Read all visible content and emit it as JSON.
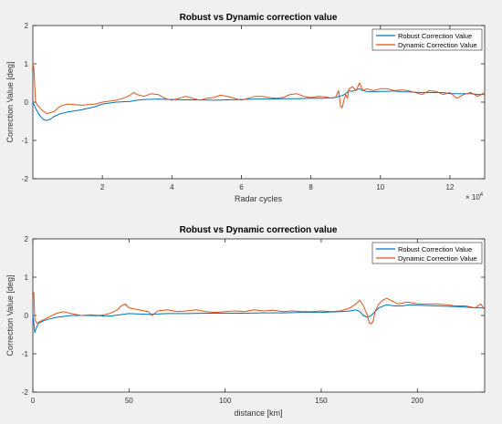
{
  "colors": {
    "robust": "#0072bd",
    "dynamic": "#d95319",
    "axes_bg": "#ffffff",
    "figure_bg": "#f0f0f0",
    "axis": "#262626"
  },
  "chart_data": [
    {
      "type": "line",
      "title": "Robust vs Dynamic correction value",
      "xlabel": "Radar cycles",
      "ylabel": "Correction Value [deg]",
      "x_exponent_label": "× 10",
      "x_exponent_power": "4",
      "x_scale_factor": 10000,
      "xlim": [
        0,
        130000
      ],
      "ylim": [
        -2,
        2
      ],
      "xticks": [
        20000,
        40000,
        60000,
        80000,
        100000,
        120000
      ],
      "xtick_labels": [
        "2",
        "4",
        "6",
        "8",
        "10",
        "12"
      ],
      "yticks": [
        -2,
        -1,
        0,
        1,
        2
      ],
      "ytick_labels": [
        "-2",
        "-1",
        "0",
        "1",
        "2"
      ],
      "grid": false,
      "legend_position": "top-right",
      "series": [
        {
          "name": "Robust Correction Value",
          "color": "#0072bd",
          "x": [
            0,
            500,
            1000,
            2000,
            3000,
            4000,
            5000,
            6000,
            8000,
            10000,
            14000,
            18000,
            20000,
            24000,
            28000,
            30000,
            32000,
            36000,
            40000,
            44000,
            48000,
            52000,
            56000,
            60000,
            64000,
            68000,
            72000,
            76000,
            80000,
            84000,
            87000,
            88000,
            89000,
            90000,
            91000,
            92000,
            93000,
            94000,
            95000,
            96000,
            98000,
            100000,
            102000,
            104000,
            106000,
            108000,
            110000,
            112000,
            114000,
            116000,
            118000,
            120000,
            122000,
            124000,
            126000,
            128000,
            130000
          ],
          "values": [
            0.0,
            -0.1,
            -0.2,
            -0.35,
            -0.45,
            -0.48,
            -0.45,
            -0.38,
            -0.3,
            -0.26,
            -0.2,
            -0.12,
            -0.05,
            0.0,
            0.02,
            0.05,
            0.07,
            0.08,
            0.07,
            0.06,
            0.06,
            0.05,
            0.06,
            0.07,
            0.08,
            0.08,
            0.09,
            0.09,
            0.1,
            0.1,
            0.12,
            0.15,
            0.17,
            0.22,
            0.3,
            0.28,
            0.32,
            0.35,
            0.3,
            0.28,
            0.27,
            0.28,
            0.28,
            0.29,
            0.27,
            0.27,
            0.26,
            0.25,
            0.25,
            0.25,
            0.25,
            0.22,
            0.22,
            0.22,
            0.22,
            0.2,
            0.2
          ]
        },
        {
          "name": "Dynamic Correction Value",
          "color": "#d95319",
          "x": [
            0,
            300,
            800,
            1500,
            2500,
            4000,
            6000,
            8000,
            10000,
            14000,
            18000,
            20000,
            24000,
            26000,
            28000,
            29000,
            30000,
            32000,
            34000,
            36000,
            38000,
            40000,
            42000,
            44000,
            46000,
            48000,
            50000,
            52000,
            54000,
            56000,
            58000,
            60000,
            62000,
            64000,
            66000,
            68000,
            70000,
            72000,
            74000,
            76000,
            78000,
            80000,
            82000,
            84000,
            86000,
            87000,
            88000,
            88500,
            89000,
            89500,
            90000,
            90500,
            91000,
            92000,
            93000,
            94000,
            94500,
            95000,
            96000,
            98000,
            100000,
            102000,
            104000,
            106000,
            108000,
            110000,
            112000,
            114000,
            116000,
            118000,
            120000,
            122000,
            124000,
            126000,
            128000,
            130000
          ],
          "values": [
            1.0,
            0.9,
            0.0,
            -0.1,
            -0.2,
            -0.3,
            -0.25,
            -0.1,
            -0.05,
            -0.08,
            -0.05,
            0.0,
            0.05,
            0.1,
            0.18,
            0.25,
            0.2,
            0.15,
            0.22,
            0.2,
            0.1,
            0.05,
            0.1,
            0.15,
            0.1,
            0.05,
            0.1,
            0.12,
            0.18,
            0.15,
            0.1,
            0.05,
            0.1,
            0.15,
            0.15,
            0.12,
            0.1,
            0.12,
            0.2,
            0.22,
            0.15,
            0.12,
            0.15,
            0.14,
            0.1,
            0.12,
            0.3,
            -0.1,
            -0.15,
            0.05,
            0.2,
            0.1,
            0.35,
            0.4,
            0.3,
            0.5,
            0.4,
            0.3,
            0.35,
            0.3,
            0.35,
            0.35,
            0.3,
            0.32,
            0.3,
            0.25,
            0.2,
            0.3,
            0.28,
            0.2,
            0.25,
            0.1,
            0.2,
            0.25,
            0.15,
            0.25
          ]
        }
      ]
    },
    {
      "type": "line",
      "title": "Robust vs Dynamic correction value",
      "xlabel": "distance [km]",
      "ylabel": "Correction Value [deg]",
      "xlim": [
        0,
        235
      ],
      "ylim": [
        -2,
        2
      ],
      "xticks": [
        0,
        50,
        100,
        150,
        200
      ],
      "xtick_labels": [
        "0",
        "50",
        "100",
        "150",
        "200"
      ],
      "yticks": [
        -2,
        -1,
        0,
        1,
        2
      ],
      "ytick_labels": [
        "-2",
        "-1",
        "0",
        "1",
        "2"
      ],
      "grid": false,
      "legend_position": "top-right",
      "series": [
        {
          "name": "Robust Correction Value",
          "color": "#0072bd",
          "x": [
            0,
            0.5,
            1,
            2,
            3,
            5,
            8,
            12,
            20,
            30,
            40,
            45,
            50,
            60,
            70,
            80,
            90,
            100,
            110,
            120,
            130,
            140,
            150,
            160,
            165,
            168,
            170,
            172,
            174,
            176,
            178,
            180,
            184,
            188,
            192,
            196,
            200,
            205,
            210,
            215,
            220,
            225,
            230,
            235
          ],
          "values": [
            0.0,
            -0.2,
            -0.45,
            -0.3,
            -0.2,
            -0.15,
            -0.1,
            -0.05,
            0.0,
            0.0,
            -0.02,
            0.02,
            0.05,
            0.03,
            0.05,
            0.05,
            0.06,
            0.06,
            0.06,
            0.07,
            0.07,
            0.08,
            0.08,
            0.1,
            0.12,
            0.15,
            0.1,
            0.0,
            -0.05,
            0.0,
            0.1,
            0.2,
            0.28,
            0.25,
            0.25,
            0.28,
            0.27,
            0.26,
            0.25,
            0.24,
            0.23,
            0.22,
            0.2,
            0.2
          ]
        },
        {
          "name": "Dynamic Correction Value",
          "color": "#d95319",
          "x": [
            0,
            0.5,
            1,
            2,
            4,
            8,
            12,
            16,
            20,
            25,
            30,
            35,
            40,
            44,
            46,
            48,
            50,
            55,
            60,
            62,
            65,
            70,
            75,
            80,
            85,
            90,
            95,
            100,
            105,
            110,
            115,
            120,
            125,
            130,
            135,
            140,
            145,
            150,
            155,
            160,
            165,
            168,
            170,
            172,
            174,
            175,
            176,
            177,
            178,
            180,
            182,
            184,
            186,
            188,
            190,
            195,
            200,
            205,
            210,
            215,
            220,
            225,
            230,
            233,
            235
          ],
          "values": [
            0.5,
            0.6,
            -0.1,
            -0.2,
            -0.15,
            -0.05,
            0.05,
            0.1,
            0.05,
            0.0,
            0.02,
            0.0,
            0.05,
            0.15,
            0.25,
            0.3,
            0.2,
            0.15,
            0.1,
            0.0,
            0.12,
            0.15,
            0.1,
            0.12,
            0.15,
            0.1,
            0.08,
            0.1,
            0.12,
            0.1,
            0.15,
            0.12,
            0.14,
            0.1,
            0.12,
            0.1,
            0.1,
            0.12,
            0.1,
            0.12,
            0.2,
            0.3,
            0.4,
            0.25,
            0.0,
            -0.2,
            -0.22,
            -0.15,
            0.1,
            0.3,
            0.4,
            0.45,
            0.4,
            0.35,
            0.3,
            0.35,
            0.3,
            0.3,
            0.3,
            0.28,
            0.25,
            0.25,
            0.2,
            0.3,
            0.15
          ]
        }
      ]
    }
  ]
}
